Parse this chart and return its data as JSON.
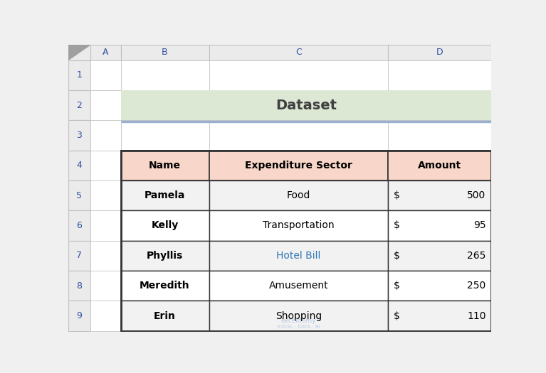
{
  "title": "Dataset",
  "title_bg_color": "#dce8d4",
  "title_text_color": "#404040",
  "title_underline_color": "#9bafcf",
  "header_bg_color": "#f8d7ca",
  "header_text_color": "#000000",
  "table_border_color": "#333333",
  "row_bg_odd": "#f2f2f2",
  "row_bg_even": "#ffffff",
  "col_headers": [
    "Name",
    "Expenditure Sector",
    "Amount"
  ],
  "rows": [
    [
      "Pamela",
      "Food",
      "$",
      "500"
    ],
    [
      "Kelly",
      "Transportation",
      "$",
      "95"
    ],
    [
      "Phyllis",
      "Hotel Bill",
      "$",
      "265"
    ],
    [
      "Meredith",
      "Amusement",
      "$",
      "250"
    ],
    [
      "Erin",
      "Shopping",
      "$",
      "110"
    ]
  ],
  "hotel_bill_color": "#2e75b6",
  "spreadsheet_bg": "#f0f0f0",
  "grid_color": "#c0c0c0",
  "row_num_color": "#3050a0",
  "col_letter_color": "#3050a0",
  "watermark_color": "#b0c4de",
  "fig_width": 7.67,
  "fig_height": 5.25,
  "dpi": 100
}
